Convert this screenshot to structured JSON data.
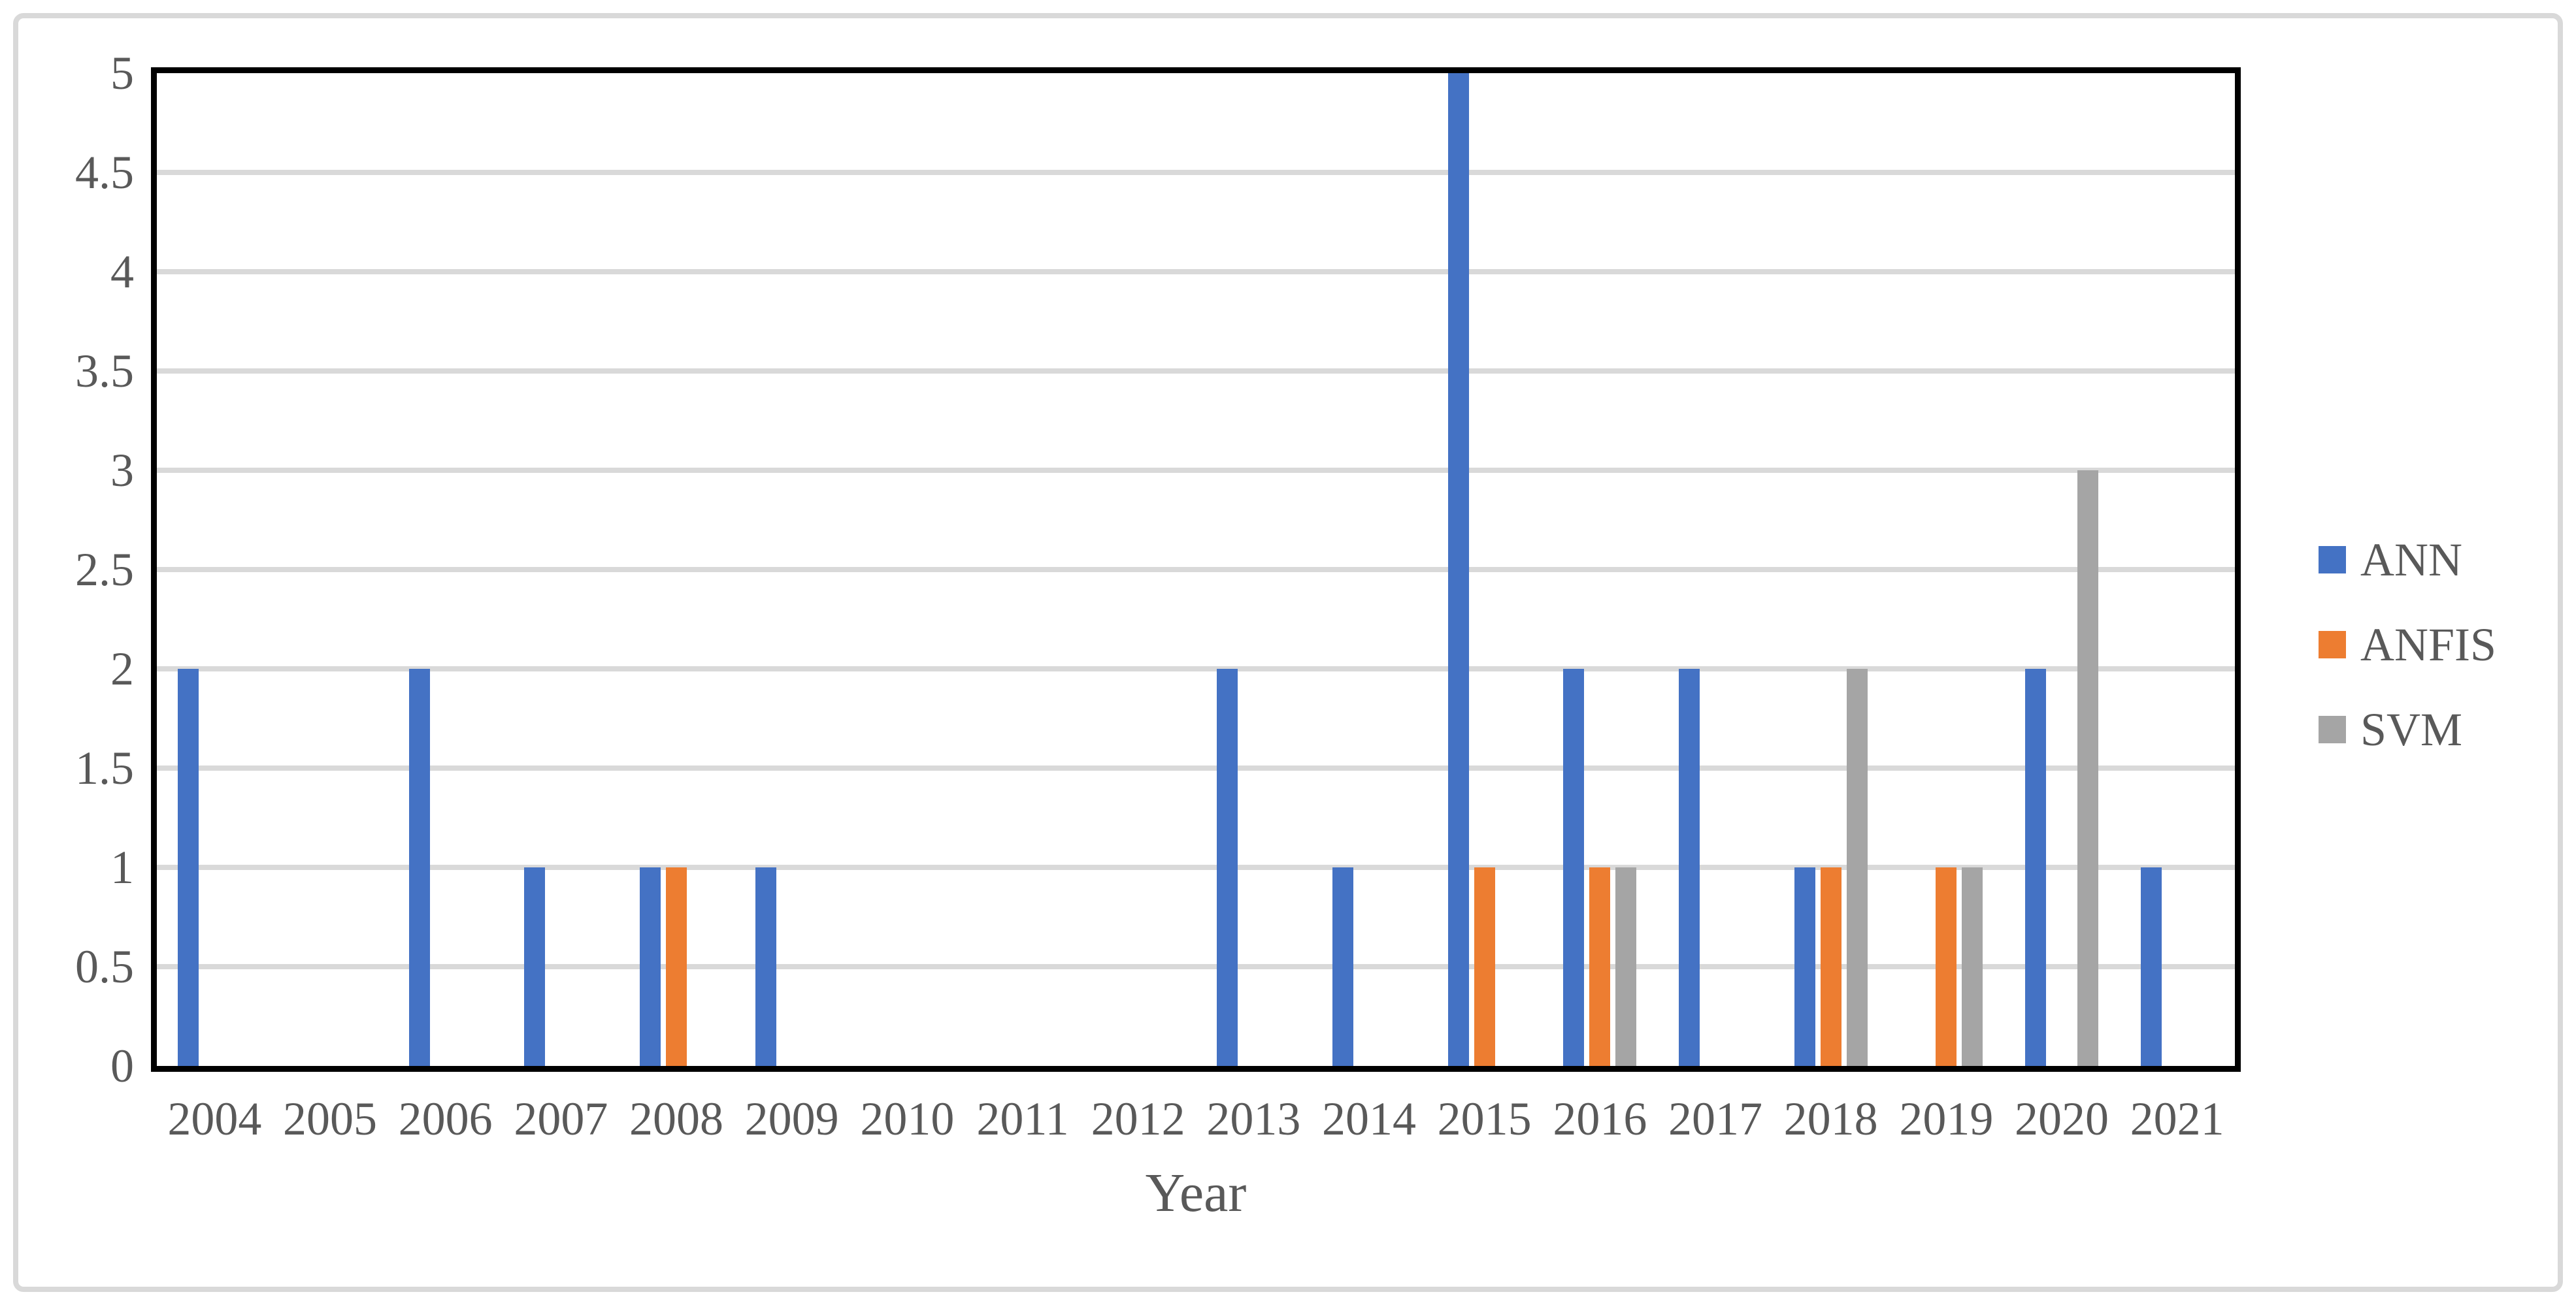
{
  "figure": {
    "background_color": "#ffffff",
    "frame_color": "#d9d9d9",
    "plot_border_color": "#000000",
    "gridline_color": "#d9d9d9",
    "text_color": "#595959"
  },
  "chart_data": {
    "type": "bar",
    "title": "",
    "xlabel": "Year",
    "ylabel": "",
    "categories": [
      "2004",
      "2005",
      "2006",
      "2007",
      "2008",
      "2009",
      "2010",
      "2011",
      "2012",
      "2013",
      "2014",
      "2015",
      "2016",
      "2017",
      "2018",
      "2019",
      "2020",
      "2021"
    ],
    "series": [
      {
        "name": "ANN",
        "color": "#4472c4",
        "values": [
          2,
          0,
          2,
          1,
          1,
          1,
          0,
          0,
          0,
          2,
          1,
          5,
          2,
          2,
          1,
          0,
          2,
          1
        ]
      },
      {
        "name": "ANFIS",
        "color": "#ed7d31",
        "values": [
          0,
          0,
          0,
          0,
          1,
          0,
          0,
          0,
          0,
          0,
          0,
          1,
          1,
          0,
          1,
          1,
          0,
          0
        ]
      },
      {
        "name": "SVM",
        "color": "#a5a5a5",
        "values": [
          0,
          0,
          0,
          0,
          0,
          0,
          0,
          0,
          0,
          0,
          0,
          0,
          1,
          0,
          2,
          1,
          3,
          0
        ]
      }
    ],
    "ylim": [
      0,
      5
    ],
    "ytick_step": 0.5,
    "yticks": [
      "0",
      "0.5",
      "1",
      "1.5",
      "2",
      "2.5",
      "3",
      "3.5",
      "4",
      "4.5",
      "5"
    ],
    "grid": true,
    "legend_position": "right"
  }
}
